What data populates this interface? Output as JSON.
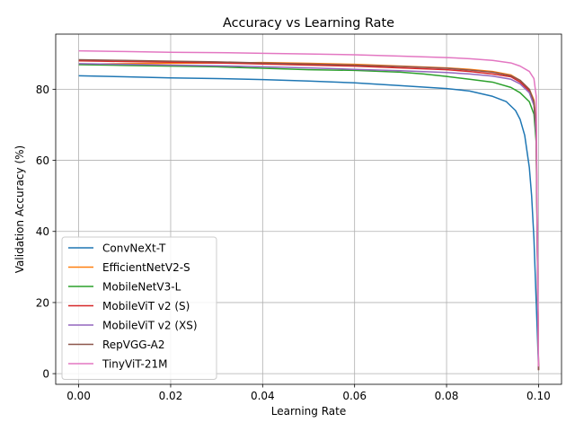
{
  "chart_data": {
    "type": "line",
    "title": "Accuracy vs Learning Rate",
    "xlabel": "Learning Rate",
    "ylabel": "Validation Accuracy (%)",
    "xlim": [
      -0.005,
      0.105
    ],
    "ylim": [
      -3,
      95.5
    ],
    "xticks": [
      0.0,
      0.02,
      0.04,
      0.06,
      0.08,
      0.1
    ],
    "xtick_labels": [
      "0.00",
      "0.02",
      "0.04",
      "0.06",
      "0.08",
      "0.10"
    ],
    "yticks": [
      0,
      20,
      40,
      60,
      80
    ],
    "ytick_labels": [
      "0",
      "20",
      "40",
      "60",
      "80"
    ],
    "grid": true,
    "legend_position": "lower-left",
    "series": [
      {
        "name": "ConvNeXt-T",
        "color": "#1f77b4",
        "x": [
          0.0,
          0.01,
          0.02,
          0.03,
          0.04,
          0.05,
          0.06,
          0.07,
          0.08,
          0.085,
          0.09,
          0.093,
          0.095,
          0.096,
          0.097,
          0.098,
          0.0985,
          0.099,
          0.0995,
          0.1
        ],
        "y": [
          83.8,
          83.5,
          83.2,
          83.0,
          82.7,
          82.3,
          81.8,
          81.0,
          80.2,
          79.5,
          78.0,
          76.5,
          74.0,
          71.5,
          67.0,
          58.0,
          50.0,
          38.0,
          20.0,
          2.0
        ]
      },
      {
        "name": "EfficientNetV2-S",
        "color": "#ff7f0e",
        "x": [
          0.0,
          0.01,
          0.02,
          0.03,
          0.04,
          0.05,
          0.06,
          0.07,
          0.08,
          0.085,
          0.09,
          0.094,
          0.096,
          0.098,
          0.099,
          0.0995,
          0.1
        ],
        "y": [
          87.0,
          87.2,
          87.3,
          87.4,
          87.5,
          87.3,
          87.0,
          86.5,
          86.0,
          85.6,
          85.0,
          84.0,
          82.5,
          80.0,
          77.0,
          70.0,
          1.0
        ]
      },
      {
        "name": "MobileNetV3-L",
        "color": "#2ca02c",
        "x": [
          0.0,
          0.01,
          0.02,
          0.03,
          0.04,
          0.05,
          0.06,
          0.07,
          0.075,
          0.08,
          0.085,
          0.09,
          0.094,
          0.096,
          0.098,
          0.099,
          0.0995,
          0.1
        ],
        "y": [
          86.9,
          86.7,
          86.5,
          86.3,
          85.9,
          85.5,
          85.3,
          84.8,
          84.3,
          83.6,
          82.8,
          82.0,
          80.5,
          79.0,
          76.5,
          73.0,
          65.0,
          1.0
        ]
      },
      {
        "name": "MobileViT v2 (S)",
        "color": "#d62728",
        "x": [
          0.0,
          0.01,
          0.02,
          0.03,
          0.04,
          0.05,
          0.06,
          0.07,
          0.08,
          0.085,
          0.09,
          0.094,
          0.096,
          0.098,
          0.099,
          0.0995,
          0.1
        ],
        "y": [
          88.0,
          87.8,
          87.6,
          87.4,
          87.1,
          86.8,
          86.5,
          86.0,
          85.5,
          85.0,
          84.3,
          83.5,
          82.0,
          79.5,
          76.0,
          68.0,
          1.0
        ]
      },
      {
        "name": "MobileViT v2 (XS)",
        "color": "#9467bd",
        "x": [
          0.0,
          0.01,
          0.02,
          0.03,
          0.04,
          0.05,
          0.06,
          0.07,
          0.08,
          0.085,
          0.09,
          0.094,
          0.096,
          0.098,
          0.099,
          0.0995,
          0.1
        ],
        "y": [
          87.2,
          87.0,
          86.8,
          86.6,
          86.3,
          86.0,
          85.6,
          85.2,
          84.7,
          84.3,
          83.7,
          82.8,
          81.5,
          79.0,
          75.5,
          67.0,
          1.0
        ]
      },
      {
        "name": "RepVGG-A2",
        "color": "#8c564b",
        "x": [
          0.0,
          0.01,
          0.02,
          0.03,
          0.04,
          0.05,
          0.06,
          0.07,
          0.08,
          0.085,
          0.09,
          0.094,
          0.096,
          0.098,
          0.099,
          0.0995,
          0.1
        ],
        "y": [
          88.3,
          88.1,
          87.9,
          87.7,
          87.4,
          87.1,
          86.8,
          86.4,
          85.9,
          85.4,
          84.8,
          83.8,
          82.5,
          80.0,
          76.5,
          69.0,
          1.0
        ]
      },
      {
        "name": "TinyViT-21M",
        "color": "#e377c2",
        "x": [
          0.0,
          0.01,
          0.02,
          0.03,
          0.04,
          0.05,
          0.06,
          0.07,
          0.08,
          0.085,
          0.09,
          0.094,
          0.096,
          0.098,
          0.099,
          0.0995,
          0.1
        ],
        "y": [
          90.8,
          90.6,
          90.4,
          90.3,
          90.1,
          89.9,
          89.7,
          89.3,
          88.9,
          88.6,
          88.1,
          87.4,
          86.5,
          85.0,
          83.0,
          78.0,
          2.0
        ]
      }
    ]
  }
}
